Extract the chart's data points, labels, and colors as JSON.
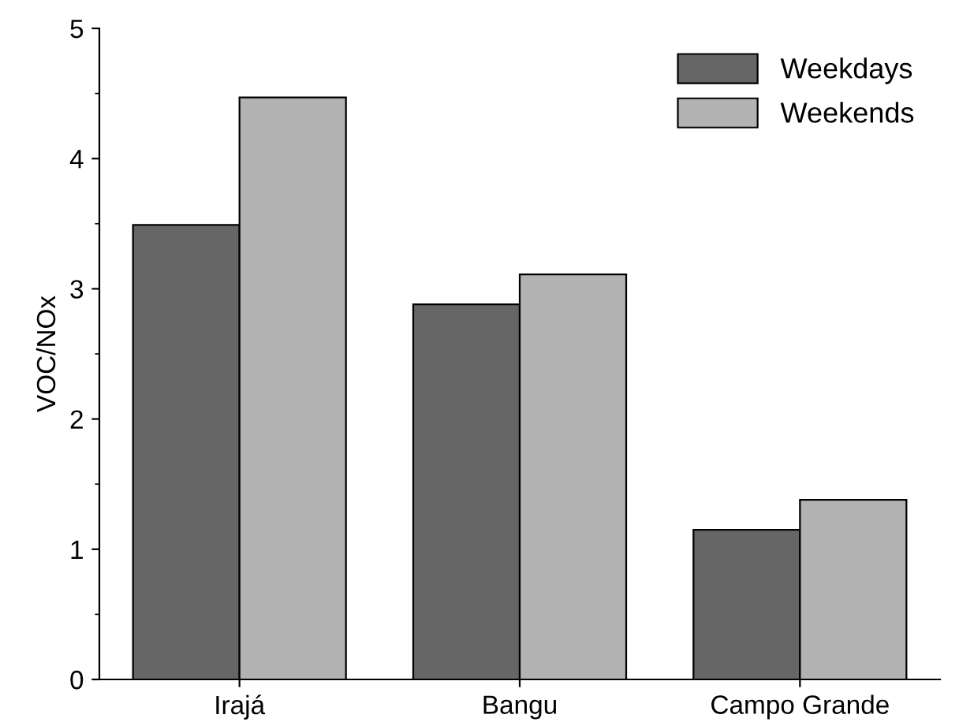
{
  "chart_data": {
    "type": "bar",
    "ylabel": "VOC/NOx",
    "categories": [
      "Irajá",
      "Bangu",
      "Campo Grande"
    ],
    "series": [
      {
        "name": "Weekdays",
        "color": "#666666",
        "values": [
          3.49,
          2.88,
          1.15
        ]
      },
      {
        "name": "Weekends",
        "color": "#b3b3b3",
        "values": [
          4.47,
          3.11,
          1.38
        ]
      }
    ],
    "ylim": [
      0,
      5
    ],
    "yticks": [
      0,
      1,
      2,
      3,
      4,
      5
    ],
    "legend": "top right",
    "grid": false
  }
}
